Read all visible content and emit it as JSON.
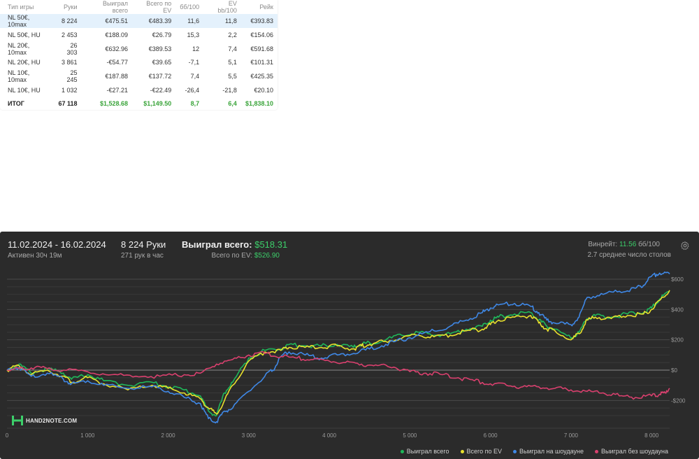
{
  "stats_table": {
    "headers": [
      "Тип игры",
      "Руки",
      "Выиграл всего",
      "Всего по EV",
      "бб/100",
      "EV bb/100",
      "Рейк"
    ],
    "rows": [
      {
        "game": "NL 50€, 10max",
        "hands": "8 224",
        "won": "€475.51",
        "ev": "€483.39",
        "bb100": "11,6",
        "evbb100": "11,8",
        "rake": "€393.83",
        "won_sign": "pos",
        "ev_sign": "pos",
        "selected": true
      },
      {
        "game": "NL 50€, HU",
        "hands": "2 453",
        "won": "€188.09",
        "ev": "€26.79",
        "bb100": "15,3",
        "evbb100": "2,2",
        "rake": "€154.06",
        "won_sign": "pos",
        "ev_sign": "pos",
        "selected": false
      },
      {
        "game": "NL 20€, 10max",
        "hands": "26 303",
        "won": "€632.96",
        "ev": "€389.53",
        "bb100": "12",
        "evbb100": "7,4",
        "rake": "€591.68",
        "won_sign": "pos",
        "ev_sign": "pos",
        "selected": false
      },
      {
        "game": "NL 20€, HU",
        "hands": "3 861",
        "won": "-€54.77",
        "ev": "€39.65",
        "bb100": "-7,1",
        "evbb100": "5,1",
        "rake": "€101.31",
        "won_sign": "neg",
        "ev_sign": "pos",
        "selected": false
      },
      {
        "game": "NL 10€, 10max",
        "hands": "25 245",
        "won": "€187.88",
        "ev": "€137.72",
        "bb100": "7,4",
        "evbb100": "5,5",
        "rake": "€425.35",
        "won_sign": "pos",
        "ev_sign": "pos",
        "selected": false
      },
      {
        "game": "NL 10€, HU",
        "hands": "1 032",
        "won": "-€27.21",
        "ev": "-€22.49",
        "bb100": "-26,4",
        "evbb100": "-21,8",
        "rake": "€20.10",
        "won_sign": "neg",
        "ev_sign": "neg",
        "selected": false
      }
    ],
    "total": {
      "game": "ИТОГ",
      "hands": "67 118",
      "won": "$1,528.68",
      "ev": "$1,149.50",
      "bb100": "8,7",
      "evbb100": "6,4",
      "rake": "$1,838.10"
    }
  },
  "panel": {
    "date_range": "11.02.2024 - 16.02.2024",
    "active": "Активен 30ч 19м",
    "hands": "8 224 Руки",
    "hands_per_hour": "271 рук в час",
    "won_label": "Выиграл всего:",
    "won_value": "$518.31",
    "ev_label": "Всего по EV:",
    "ev_value": "$526.90",
    "winrate_label": "Винрейт:",
    "winrate_value": "11.56",
    "winrate_unit": "бб/100",
    "avg_tables": "2.7 среднее число столов",
    "logo_text": "HAND2NOTE.COM",
    "gear_icon": "gear-icon"
  },
  "chart_data": {
    "type": "line",
    "xlim": [
      0,
      8224
    ],
    "ylim": [
      -350,
      650
    ],
    "x_ticks": [
      0,
      1000,
      2000,
      3000,
      4000,
      5000,
      6000,
      7000,
      8000
    ],
    "x_tick_labels": [
      "0",
      "1 000",
      "2 000",
      "3 000",
      "4 000",
      "5 000",
      "6 000",
      "7 000",
      "8 000"
    ],
    "y_ticks": [
      -200,
      0,
      200,
      400,
      600
    ],
    "y_tick_labels": [
      "-$200",
      "$0",
      "$200",
      "$400",
      "$600"
    ],
    "grid": true,
    "legend_position": "bottom-right",
    "series": [
      {
        "name": "Выиграл всего",
        "color": "#1fb85a",
        "x": [
          0,
          150,
          300,
          500,
          700,
          800,
          1000,
          1200,
          1500,
          1800,
          2000,
          2200,
          2400,
          2500,
          2600,
          2700,
          2800,
          3000,
          3200,
          3400,
          3500,
          3700,
          3900,
          4100,
          4300,
          4400,
          4500,
          4700,
          4900,
          5100,
          5300,
          5500,
          5700,
          5900,
          6000,
          6100,
          6300,
          6500,
          6600,
          6700,
          6800,
          7000,
          7100,
          7200,
          7300,
          7500,
          7700,
          7900,
          8000,
          8100,
          8224
        ],
        "y": [
          0,
          40,
          -20,
          10,
          -20,
          -60,
          -30,
          -70,
          -100,
          -80,
          -110,
          -130,
          -170,
          -270,
          -300,
          -150,
          -80,
          80,
          130,
          140,
          170,
          160,
          160,
          170,
          150,
          170,
          180,
          200,
          230,
          250,
          230,
          240,
          270,
          290,
          330,
          350,
          370,
          380,
          330,
          290,
          270,
          210,
          250,
          340,
          360,
          350,
          370,
          380,
          410,
          470,
          518
        ]
      },
      {
        "name": "Всего по EV",
        "color": "#e8e02c",
        "x": [
          0,
          150,
          300,
          500,
          700,
          800,
          1000,
          1200,
          1500,
          1800,
          2000,
          2200,
          2400,
          2500,
          2600,
          2700,
          2800,
          3000,
          3200,
          3400,
          3500,
          3700,
          3900,
          4100,
          4300,
          4400,
          4500,
          4700,
          4900,
          5100,
          5300,
          5500,
          5700,
          5900,
          6000,
          6100,
          6300,
          6500,
          6600,
          6700,
          6800,
          7000,
          7100,
          7200,
          7300,
          7500,
          7700,
          7900,
          8000,
          8100,
          8224
        ],
        "y": [
          0,
          30,
          -30,
          0,
          -40,
          -80,
          -50,
          -90,
          -130,
          -100,
          -120,
          -150,
          -190,
          -250,
          -290,
          -200,
          -100,
          60,
          120,
          130,
          150,
          150,
          150,
          160,
          140,
          160,
          170,
          190,
          210,
          230,
          220,
          230,
          260,
          270,
          300,
          330,
          350,
          360,
          310,
          270,
          260,
          200,
          240,
          330,
          350,
          340,
          360,
          370,
          400,
          460,
          527
        ]
      },
      {
        "name": "Выиграл на шоудауне",
        "color": "#3f88e6",
        "x": [
          0,
          150,
          300,
          500,
          700,
          800,
          1000,
          1200,
          1500,
          1800,
          2000,
          2200,
          2400,
          2500,
          2600,
          2700,
          2800,
          3000,
          3200,
          3300,
          3400,
          3500,
          3700,
          3900,
          4100,
          4300,
          4500,
          4700,
          4900,
          5100,
          5300,
          5500,
          5700,
          5900,
          6000,
          6100,
          6300,
          6500,
          6600,
          6700,
          6800,
          7000,
          7100,
          7200,
          7400,
          7600,
          7800,
          7900,
          8000,
          8100,
          8224
        ],
        "y": [
          0,
          20,
          -40,
          -20,
          -60,
          -90,
          -70,
          -100,
          -120,
          -110,
          -140,
          -180,
          -220,
          -320,
          -340,
          -270,
          -250,
          -140,
          -40,
          0,
          90,
          120,
          100,
          80,
          100,
          110,
          140,
          170,
          200,
          230,
          260,
          290,
          330,
          380,
          410,
          430,
          440,
          420,
          380,
          330,
          310,
          300,
          350,
          480,
          500,
          520,
          540,
          560,
          620,
          640,
          635
        ]
      },
      {
        "name": "Выиграл без шоудауна",
        "color": "#d9406e",
        "x": [
          0,
          150,
          300,
          500,
          700,
          1000,
          1300,
          1600,
          1900,
          2200,
          2400,
          2600,
          2800,
          3000,
          3200,
          3400,
          3600,
          3800,
          4000,
          4200,
          4400,
          4600,
          4800,
          5000,
          5200,
          5400,
          5600,
          5800,
          6000,
          6200,
          6400,
          6600,
          6800,
          7000,
          7200,
          7400,
          7600,
          7800,
          8000,
          8100,
          8150,
          8224
        ],
        "y": [
          0,
          10,
          15,
          10,
          0,
          -10,
          -30,
          -40,
          -40,
          -30,
          -20,
          40,
          70,
          100,
          110,
          90,
          80,
          70,
          60,
          50,
          40,
          30,
          20,
          -10,
          -20,
          -30,
          -50,
          -70,
          -90,
          -100,
          -110,
          -110,
          -120,
          -130,
          -140,
          -150,
          -170,
          -180,
          -170,
          -160,
          -150,
          -120
        ]
      }
    ]
  }
}
